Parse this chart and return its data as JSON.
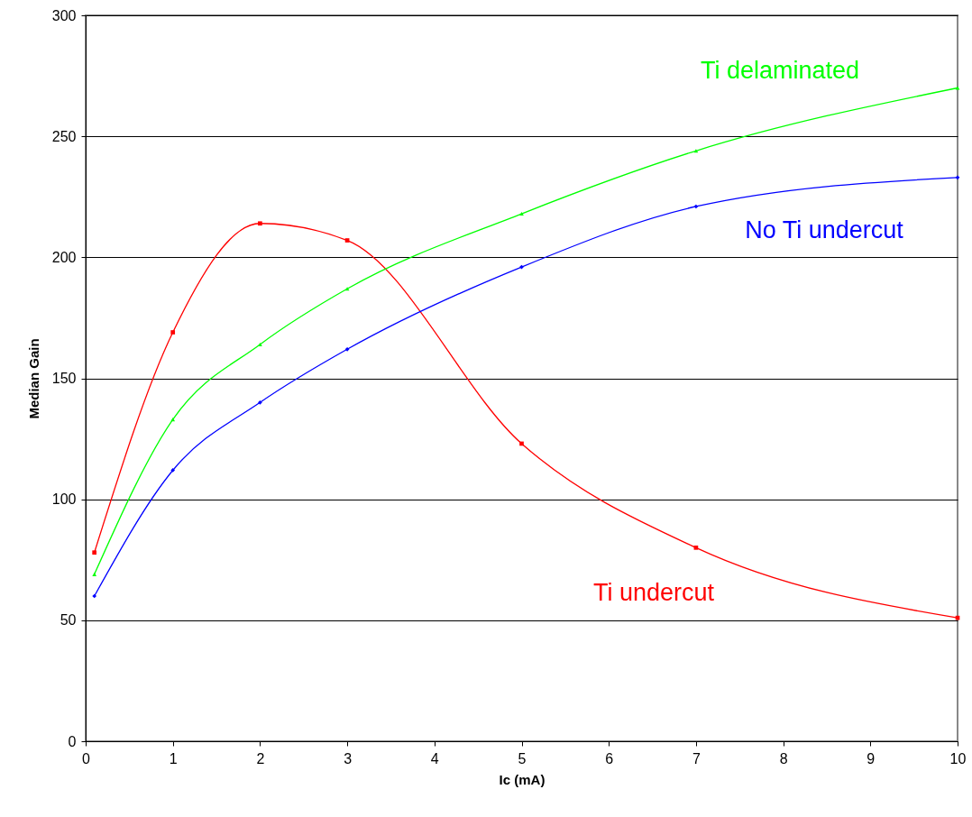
{
  "chart_data": {
    "type": "line",
    "xlabel": "Ic (mA)",
    "ylabel": "Median Gain",
    "x": [
      0.1,
      1,
      2,
      3,
      5,
      7,
      10
    ],
    "series": [
      {
        "name": "Ti undercut",
        "color": "#ff0000",
        "marker": "square",
        "values": [
          78,
          169,
          214,
          207,
          123,
          80,
          51
        ]
      },
      {
        "name": "Ti delaminated",
        "color": "#00ff00",
        "marker": "triangle",
        "values": [
          69,
          133,
          164,
          187,
          218,
          244,
          270
        ]
      },
      {
        "name": "No Ti undercut",
        "color": "#0000ff",
        "marker": "diamond",
        "values": [
          60,
          112,
          140,
          162,
          196,
          221,
          233
        ]
      }
    ],
    "xlim": [
      0,
      10
    ],
    "xticks": [
      0,
      1,
      2,
      3,
      4,
      5,
      6,
      7,
      8,
      9,
      10
    ],
    "ylim": [
      0,
      300
    ],
    "yticks": [
      0,
      50,
      100,
      150,
      200,
      250,
      300
    ],
    "grid": "y"
  }
}
